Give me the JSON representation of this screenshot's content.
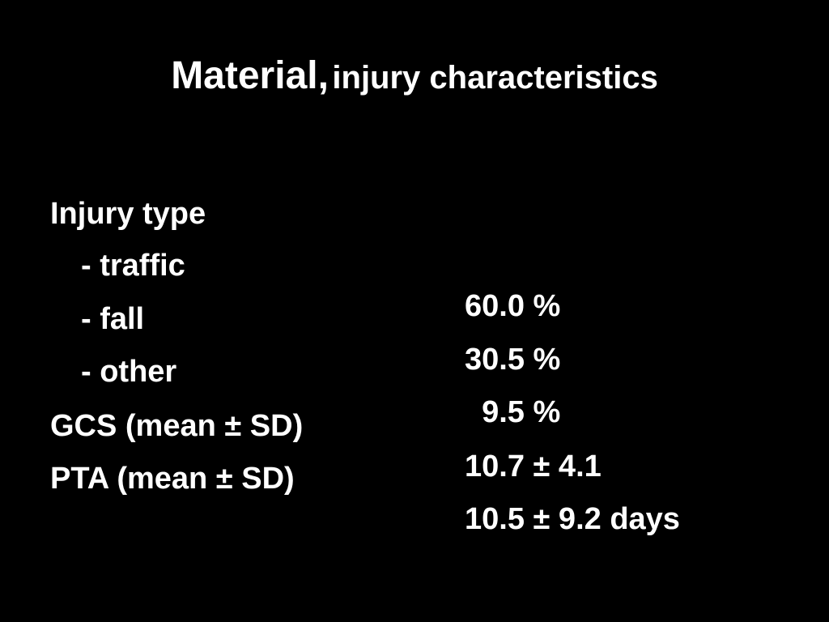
{
  "title": {
    "main": "Material,",
    "sub": "injury characteristics"
  },
  "rows": [
    {
      "label": "Injury type",
      "value": ""
    },
    {
      "label": "- traffic",
      "value": "60.0 %"
    },
    {
      "label": "- fall",
      "value": "30.5 %"
    },
    {
      "label": "- other",
      "value": "  9.5 %"
    },
    {
      "label": "GCS (mean ± SD)",
      "value": "10.7 ± 4.1"
    },
    {
      "label": "PTA (mean ± SD)",
      "value": "10.5 ± 9.2 days"
    }
  ]
}
